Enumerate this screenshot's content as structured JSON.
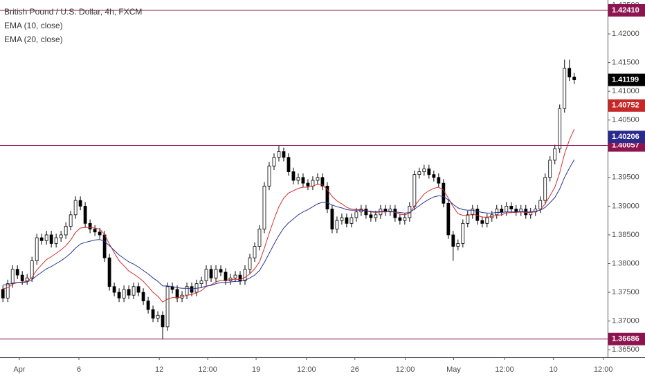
{
  "chart_data": {
    "type": "candlestick",
    "title": "British Pound / U.S. Dollar, 4h, FXCM",
    "up_color": "#ffffff",
    "down_color": "#000000",
    "open": [
      1.3755,
      1.374,
      1.3765,
      1.379,
      1.378,
      1.377,
      1.3775,
      1.3805,
      1.3845,
      1.384,
      1.385,
      1.3835,
      1.3845,
      1.385,
      1.3865,
      1.3885,
      1.391,
      1.39,
      1.387,
      1.386,
      1.3855,
      1.385,
      1.381,
      1.376,
      1.375,
      1.374,
      1.3755,
      1.3745,
      1.376,
      1.375,
      1.3735,
      1.372,
      1.3705,
      1.371,
      1.369,
      1.376,
      1.3755,
      1.374,
      1.3745,
      1.376,
      1.375,
      1.3765,
      1.377,
      1.379,
      1.3775,
      1.379,
      1.3785,
      1.377,
      1.3775,
      1.378,
      1.377,
      1.379,
      1.381,
      1.383,
      1.386,
      1.3935,
      1.397,
      1.3985,
      1.3995,
      1.3985,
      1.396,
      1.3945,
      1.395,
      1.394,
      1.3935,
      1.3945,
      1.395,
      1.3935,
      1.3895,
      1.386,
      1.3875,
      1.388,
      1.387,
      1.388,
      1.389,
      1.3895,
      1.3885,
      1.388,
      1.3885,
      1.3895,
      1.389,
      1.3895,
      1.388,
      1.3875,
      1.388,
      1.39,
      1.3955,
      1.396,
      1.3965,
      1.3955,
      1.395,
      1.394,
      1.3905,
      1.385,
      1.383,
      1.3835,
      1.387,
      1.3885,
      1.3895,
      1.3875,
      1.387,
      1.388,
      1.3885,
      1.3895,
      1.389,
      1.39,
      1.3895,
      1.389,
      1.3895,
      1.3885,
      1.389,
      1.3895,
      1.391,
      1.395,
      1.398,
      1.4,
      1.407,
      1.414,
      1.4125
    ],
    "high": [
      1.3762,
      1.3772,
      1.3797,
      1.3797,
      1.3787,
      1.3782,
      1.3812,
      1.3852,
      1.3852,
      1.3857,
      1.3857,
      1.3852,
      1.3857,
      1.3872,
      1.3892,
      1.3917,
      1.3917,
      1.3907,
      1.3877,
      1.3867,
      1.3862,
      1.3857,
      1.3817,
      1.3767,
      1.3757,
      1.3762,
      1.3762,
      1.3767,
      1.3767,
      1.3757,
      1.3742,
      1.3727,
      1.3717,
      1.3717,
      1.3767,
      1.3767,
      1.3762,
      1.3752,
      1.3767,
      1.3767,
      1.3772,
      1.3777,
      1.3797,
      1.3797,
      1.3797,
      1.3797,
      1.3792,
      1.3782,
      1.3787,
      1.3787,
      1.3797,
      1.3817,
      1.3837,
      1.3867,
      1.3942,
      1.3977,
      1.3992,
      1.4005,
      1.4002,
      1.3992,
      1.3967,
      1.3957,
      1.3957,
      1.3947,
      1.3952,
      1.3957,
      1.3957,
      1.3942,
      1.3902,
      1.3882,
      1.3887,
      1.3887,
      1.3887,
      1.3897,
      1.3902,
      1.3902,
      1.3892,
      1.3892,
      1.3902,
      1.3902,
      1.3902,
      1.3902,
      1.3887,
      1.3887,
      1.3907,
      1.3962,
      1.3967,
      1.3972,
      1.3972,
      1.3962,
      1.3957,
      1.3947,
      1.3912,
      1.3857,
      1.3842,
      1.3877,
      1.3892,
      1.3902,
      1.3902,
      1.3882,
      1.3887,
      1.3892,
      1.3902,
      1.3902,
      1.3907,
      1.3907,
      1.3902,
      1.3902,
      1.3902,
      1.3897,
      1.3902,
      1.3917,
      1.3957,
      1.3987,
      1.4007,
      1.4077,
      1.4155,
      1.4155,
      1.4132
    ],
    "low": [
      1.3733,
      1.3733,
      1.3758,
      1.3773,
      1.3763,
      1.3763,
      1.3768,
      1.3798,
      1.3833,
      1.3833,
      1.3828,
      1.3828,
      1.3838,
      1.3843,
      1.3858,
      1.3878,
      1.3893,
      1.3863,
      1.3853,
      1.3848,
      1.3843,
      1.3803,
      1.3753,
      1.3743,
      1.3733,
      1.3733,
      1.3738,
      1.3738,
      1.3743,
      1.3728,
      1.3713,
      1.3698,
      1.3698,
      1.3668,
      1.3683,
      1.3748,
      1.3733,
      1.3733,
      1.3738,
      1.3743,
      1.3743,
      1.3758,
      1.3763,
      1.3768,
      1.3768,
      1.3778,
      1.3763,
      1.3763,
      1.3768,
      1.3763,
      1.3763,
      1.3783,
      1.3803,
      1.3823,
      1.3853,
      1.3928,
      1.3963,
      1.3978,
      1.3978,
      1.3953,
      1.3938,
      1.3938,
      1.3933,
      1.3928,
      1.3928,
      1.3938,
      1.3928,
      1.3888,
      1.3853,
      1.3853,
      1.3868,
      1.3863,
      1.3863,
      1.3873,
      1.3883,
      1.3878,
      1.3873,
      1.3873,
      1.3878,
      1.3883,
      1.3883,
      1.3873,
      1.3868,
      1.3868,
      1.3873,
      1.3893,
      1.3948,
      1.3953,
      1.3948,
      1.3943,
      1.3933,
      1.3898,
      1.3843,
      1.3805,
      1.3823,
      1.3828,
      1.3863,
      1.3878,
      1.3868,
      1.3863,
      1.3863,
      1.3873,
      1.3878,
      1.3883,
      1.3883,
      1.3888,
      1.3883,
      1.3883,
      1.3878,
      1.3878,
      1.3883,
      1.3888,
      1.3903,
      1.3943,
      1.3973,
      1.3993,
      1.4063,
      1.4118,
      1.4113
    ],
    "close": [
      1.374,
      1.3765,
      1.379,
      1.378,
      1.377,
      1.3775,
      1.3805,
      1.3845,
      1.384,
      1.385,
      1.3835,
      1.3845,
      1.385,
      1.3865,
      1.3885,
      1.391,
      1.39,
      1.387,
      1.386,
      1.3855,
      1.385,
      1.381,
      1.376,
      1.375,
      1.374,
      1.3755,
      1.3745,
      1.376,
      1.375,
      1.3735,
      1.372,
      1.3705,
      1.371,
      1.369,
      1.376,
      1.3755,
      1.374,
      1.3745,
      1.376,
      1.375,
      1.3765,
      1.377,
      1.379,
      1.3775,
      1.379,
      1.3785,
      1.377,
      1.3775,
      1.378,
      1.377,
      1.379,
      1.381,
      1.383,
      1.386,
      1.3935,
      1.397,
      1.3985,
      1.3995,
      1.3985,
      1.396,
      1.3945,
      1.395,
      1.394,
      1.3935,
      1.3945,
      1.395,
      1.3935,
      1.3895,
      1.386,
      1.3875,
      1.388,
      1.387,
      1.388,
      1.389,
      1.3895,
      1.3885,
      1.388,
      1.3885,
      1.3895,
      1.389,
      1.3895,
      1.388,
      1.3875,
      1.388,
      1.39,
      1.3955,
      1.396,
      1.3965,
      1.3955,
      1.395,
      1.394,
      1.3905,
      1.385,
      1.383,
      1.3835,
      1.387,
      1.3885,
      1.3895,
      1.3875,
      1.387,
      1.388,
      1.3885,
      1.3895,
      1.389,
      1.39,
      1.3895,
      1.389,
      1.3895,
      1.3885,
      1.389,
      1.3895,
      1.391,
      1.395,
      1.398,
      1.4,
      1.407,
      1.414,
      1.4125,
      1.412
    ],
    "series": [
      {
        "name": "EMA (10, close)",
        "color": "#d32f2f",
        "values": [
          1.3756,
          1.3758,
          1.3764,
          1.3767,
          1.3768,
          1.3769,
          1.3776,
          1.3789,
          1.3798,
          1.3807,
          1.3812,
          1.3818,
          1.3824,
          1.3831,
          1.3841,
          1.3854,
          1.3862,
          1.3863,
          1.3863,
          1.3862,
          1.386,
          1.3851,
          1.3834,
          1.3819,
          1.3805,
          1.3796,
          1.3787,
          1.3782,
          1.3776,
          1.3769,
          1.376,
          1.375,
          1.3743,
          1.3733,
          1.3738,
          1.3741,
          1.3741,
          1.3742,
          1.3745,
          1.3746,
          1.3749,
          1.3753,
          1.376,
          1.3763,
          1.3768,
          1.3771,
          1.3771,
          1.3772,
          1.3773,
          1.3772,
          1.3776,
          1.3782,
          1.3791,
          1.3803,
          1.3827,
          1.3853,
          1.3877,
          1.3899,
          1.3914,
          1.3923,
          1.3927,
          1.3931,
          1.3933,
          1.3933,
          1.3935,
          1.3938,
          1.3937,
          1.3929,
          1.3917,
          1.3909,
          1.3904,
          1.3898,
          1.3895,
          1.3894,
          1.3894,
          1.3892,
          1.389,
          1.3889,
          1.389,
          1.389,
          1.3891,
          1.3889,
          1.3886,
          1.3885,
          1.3888,
          1.39,
          1.3911,
          1.3921,
          1.3927,
          1.3931,
          1.3933,
          1.3928,
          1.3914,
          1.3899,
          1.3887,
          1.3884,
          1.3884,
          1.3886,
          1.3884,
          1.3881,
          1.3881,
          1.3882,
          1.3884,
          1.3885,
          1.3888,
          1.3889,
          1.3889,
          1.389,
          1.3889,
          1.3889,
          1.389,
          1.3894,
          1.3904,
          1.3918,
          1.3933,
          1.3958,
          1.3991,
          1.4015,
          1.4034
        ]
      },
      {
        "name": "EMA (20, close)",
        "color": "#283593",
        "values": [
          1.3763,
          1.3763,
          1.3766,
          1.3767,
          1.3767,
          1.3768,
          1.3772,
          1.3779,
          1.3785,
          1.3791,
          1.3795,
          1.38,
          1.3805,
          1.3811,
          1.3818,
          1.3827,
          1.3834,
          1.3837,
          1.3839,
          1.3841,
          1.3842,
          1.3839,
          1.3831,
          1.3823,
          1.3815,
          1.3809,
          1.3803,
          1.3799,
          1.3794,
          1.3788,
          1.3782,
          1.3775,
          1.3769,
          1.3761,
          1.3761,
          1.376,
          1.3758,
          1.3757,
          1.3757,
          1.3756,
          1.3757,
          1.3758,
          1.3761,
          1.3762,
          1.3765,
          1.3767,
          1.3767,
          1.3768,
          1.3769,
          1.3769,
          1.3771,
          1.3775,
          1.378,
          1.3788,
          1.3802,
          1.3818,
          1.3834,
          1.3849,
          1.3862,
          1.3871,
          1.3878,
          1.3885,
          1.389,
          1.3894,
          1.3899,
          1.3904,
          1.3907,
          1.3906,
          1.3902,
          1.3899,
          1.3897,
          1.3894,
          1.3893,
          1.3893,
          1.3893,
          1.3892,
          1.3891,
          1.389,
          1.3891,
          1.3891,
          1.3891,
          1.389,
          1.3889,
          1.3888,
          1.3889,
          1.3895,
          1.3901,
          1.3907,
          1.3912,
          1.3916,
          1.3918,
          1.3917,
          1.3911,
          1.3903,
          1.3897,
          1.3894,
          1.3893,
          1.3893,
          1.3891,
          1.3889,
          1.3888,
          1.3888,
          1.3889,
          1.3889,
          1.389,
          1.389,
          1.389,
          1.3891,
          1.389,
          1.389,
          1.3891,
          1.3893,
          1.3898,
          1.3906,
          1.3915,
          1.393,
          1.395,
          1.3966,
          1.3981
        ]
      }
    ],
    "xlim": [
      -0.6,
      124.9
    ],
    "xticks": [
      {
        "value": 3.4,
        "label": "Apr"
      },
      {
        "value": 15.7,
        "label": "6"
      },
      {
        "value": 32.3,
        "label": "12"
      },
      {
        "value": 42.3,
        "label": "12:00"
      },
      {
        "value": 52.3,
        "label": "19"
      },
      {
        "value": 62.7,
        "label": "12:00"
      },
      {
        "value": 72.7,
        "label": "26"
      },
      {
        "value": 83.1,
        "label": "12:00"
      },
      {
        "value": 93.1,
        "label": "May"
      },
      {
        "value": 103.6,
        "label": "12:00"
      },
      {
        "value": 113.7,
        "label": "10"
      },
      {
        "value": 124,
        "label": "12:00"
      }
    ],
    "ylim": [
      1.3637,
      1.4259
    ],
    "yticks": [
      {
        "value": 1.365,
        "label": "1.36500"
      },
      {
        "value": 1.37,
        "label": "1.37000"
      },
      {
        "value": 1.375,
        "label": "1.37500"
      },
      {
        "value": 1.38,
        "label": "1.38000"
      },
      {
        "value": 1.385,
        "label": "1.38500"
      },
      {
        "value": 1.39,
        "label": "1.39000"
      },
      {
        "value": 1.395,
        "label": "1.39500"
      },
      {
        "value": 1.4,
        "label": "1.40000"
      },
      {
        "value": 1.405,
        "label": "1.40500"
      },
      {
        "value": 1.41,
        "label": "1.41000"
      },
      {
        "value": 1.415,
        "label": "1.41500"
      },
      {
        "value": 1.42,
        "label": "1.42000"
      },
      {
        "value": 1.425,
        "label": "1.42500"
      }
    ],
    "levels": [
      {
        "value": 1.4241,
        "label": "1.42410",
        "color": "#8e1450"
      },
      {
        "value": 1.40057,
        "label": "1.40057",
        "color": "#8e1450"
      },
      {
        "value": 1.36686,
        "label": "1.36686",
        "color": "#8e1450"
      }
    ],
    "price_tags": [
      {
        "value": 1.41199,
        "label": "1.41199",
        "color": "#000000"
      },
      {
        "value": 1.40752,
        "label": "1.40752",
        "color": "#c62828"
      },
      {
        "value": 1.40206,
        "label": "1.40206",
        "color": "#2a2a8c"
      }
    ]
  }
}
